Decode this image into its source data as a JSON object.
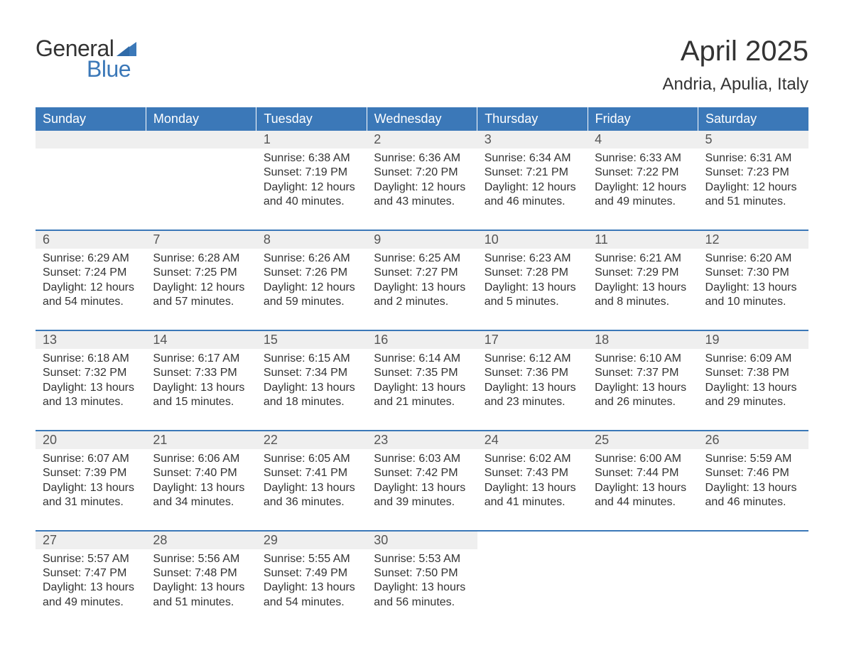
{
  "logo": {
    "word1": "General",
    "word2": "Blue"
  },
  "title": "April 2025",
  "location": "Andria, Apulia, Italy",
  "colors": {
    "brand_blue": "#3b78b8",
    "header_text": "#ffffff",
    "daynum_bg": "#efefef",
    "body_text": "#333333",
    "daynum_text": "#555555",
    "page_bg": "#ffffff"
  },
  "fonts": {
    "family": "Arial",
    "title_size_pt": 30,
    "location_size_pt": 18,
    "header_size_pt": 14,
    "daynum_size_pt": 14,
    "body_size_pt": 12
  },
  "days_of_week": [
    "Sunday",
    "Monday",
    "Tuesday",
    "Wednesday",
    "Thursday",
    "Friday",
    "Saturday"
  ],
  "weeks": [
    [
      null,
      null,
      {
        "n": "1",
        "sunrise": "Sunrise: 6:38 AM",
        "sunset": "Sunset: 7:19 PM",
        "daylight": "Daylight: 12 hours and 40 minutes."
      },
      {
        "n": "2",
        "sunrise": "Sunrise: 6:36 AM",
        "sunset": "Sunset: 7:20 PM",
        "daylight": "Daylight: 12 hours and 43 minutes."
      },
      {
        "n": "3",
        "sunrise": "Sunrise: 6:34 AM",
        "sunset": "Sunset: 7:21 PM",
        "daylight": "Daylight: 12 hours and 46 minutes."
      },
      {
        "n": "4",
        "sunrise": "Sunrise: 6:33 AM",
        "sunset": "Sunset: 7:22 PM",
        "daylight": "Daylight: 12 hours and 49 minutes."
      },
      {
        "n": "5",
        "sunrise": "Sunrise: 6:31 AM",
        "sunset": "Sunset: 7:23 PM",
        "daylight": "Daylight: 12 hours and 51 minutes."
      }
    ],
    [
      {
        "n": "6",
        "sunrise": "Sunrise: 6:29 AM",
        "sunset": "Sunset: 7:24 PM",
        "daylight": "Daylight: 12 hours and 54 minutes."
      },
      {
        "n": "7",
        "sunrise": "Sunrise: 6:28 AM",
        "sunset": "Sunset: 7:25 PM",
        "daylight": "Daylight: 12 hours and 57 minutes."
      },
      {
        "n": "8",
        "sunrise": "Sunrise: 6:26 AM",
        "sunset": "Sunset: 7:26 PM",
        "daylight": "Daylight: 12 hours and 59 minutes."
      },
      {
        "n": "9",
        "sunrise": "Sunrise: 6:25 AM",
        "sunset": "Sunset: 7:27 PM",
        "daylight": "Daylight: 13 hours and 2 minutes."
      },
      {
        "n": "10",
        "sunrise": "Sunrise: 6:23 AM",
        "sunset": "Sunset: 7:28 PM",
        "daylight": "Daylight: 13 hours and 5 minutes."
      },
      {
        "n": "11",
        "sunrise": "Sunrise: 6:21 AM",
        "sunset": "Sunset: 7:29 PM",
        "daylight": "Daylight: 13 hours and 8 minutes."
      },
      {
        "n": "12",
        "sunrise": "Sunrise: 6:20 AM",
        "sunset": "Sunset: 7:30 PM",
        "daylight": "Daylight: 13 hours and 10 minutes."
      }
    ],
    [
      {
        "n": "13",
        "sunrise": "Sunrise: 6:18 AM",
        "sunset": "Sunset: 7:32 PM",
        "daylight": "Daylight: 13 hours and 13 minutes."
      },
      {
        "n": "14",
        "sunrise": "Sunrise: 6:17 AM",
        "sunset": "Sunset: 7:33 PM",
        "daylight": "Daylight: 13 hours and 15 minutes."
      },
      {
        "n": "15",
        "sunrise": "Sunrise: 6:15 AM",
        "sunset": "Sunset: 7:34 PM",
        "daylight": "Daylight: 13 hours and 18 minutes."
      },
      {
        "n": "16",
        "sunrise": "Sunrise: 6:14 AM",
        "sunset": "Sunset: 7:35 PM",
        "daylight": "Daylight: 13 hours and 21 minutes."
      },
      {
        "n": "17",
        "sunrise": "Sunrise: 6:12 AM",
        "sunset": "Sunset: 7:36 PM",
        "daylight": "Daylight: 13 hours and 23 minutes."
      },
      {
        "n": "18",
        "sunrise": "Sunrise: 6:10 AM",
        "sunset": "Sunset: 7:37 PM",
        "daylight": "Daylight: 13 hours and 26 minutes."
      },
      {
        "n": "19",
        "sunrise": "Sunrise: 6:09 AM",
        "sunset": "Sunset: 7:38 PM",
        "daylight": "Daylight: 13 hours and 29 minutes."
      }
    ],
    [
      {
        "n": "20",
        "sunrise": "Sunrise: 6:07 AM",
        "sunset": "Sunset: 7:39 PM",
        "daylight": "Daylight: 13 hours and 31 minutes."
      },
      {
        "n": "21",
        "sunrise": "Sunrise: 6:06 AM",
        "sunset": "Sunset: 7:40 PM",
        "daylight": "Daylight: 13 hours and 34 minutes."
      },
      {
        "n": "22",
        "sunrise": "Sunrise: 6:05 AM",
        "sunset": "Sunset: 7:41 PM",
        "daylight": "Daylight: 13 hours and 36 minutes."
      },
      {
        "n": "23",
        "sunrise": "Sunrise: 6:03 AM",
        "sunset": "Sunset: 7:42 PM",
        "daylight": "Daylight: 13 hours and 39 minutes."
      },
      {
        "n": "24",
        "sunrise": "Sunrise: 6:02 AM",
        "sunset": "Sunset: 7:43 PM",
        "daylight": "Daylight: 13 hours and 41 minutes."
      },
      {
        "n": "25",
        "sunrise": "Sunrise: 6:00 AM",
        "sunset": "Sunset: 7:44 PM",
        "daylight": "Daylight: 13 hours and 44 minutes."
      },
      {
        "n": "26",
        "sunrise": "Sunrise: 5:59 AM",
        "sunset": "Sunset: 7:46 PM",
        "daylight": "Daylight: 13 hours and 46 minutes."
      }
    ],
    [
      {
        "n": "27",
        "sunrise": "Sunrise: 5:57 AM",
        "sunset": "Sunset: 7:47 PM",
        "daylight": "Daylight: 13 hours and 49 minutes."
      },
      {
        "n": "28",
        "sunrise": "Sunrise: 5:56 AM",
        "sunset": "Sunset: 7:48 PM",
        "daylight": "Daylight: 13 hours and 51 minutes."
      },
      {
        "n": "29",
        "sunrise": "Sunrise: 5:55 AM",
        "sunset": "Sunset: 7:49 PM",
        "daylight": "Daylight: 13 hours and 54 minutes."
      },
      {
        "n": "30",
        "sunrise": "Sunrise: 5:53 AM",
        "sunset": "Sunset: 7:50 PM",
        "daylight": "Daylight: 13 hours and 56 minutes."
      },
      null,
      null,
      null
    ]
  ]
}
